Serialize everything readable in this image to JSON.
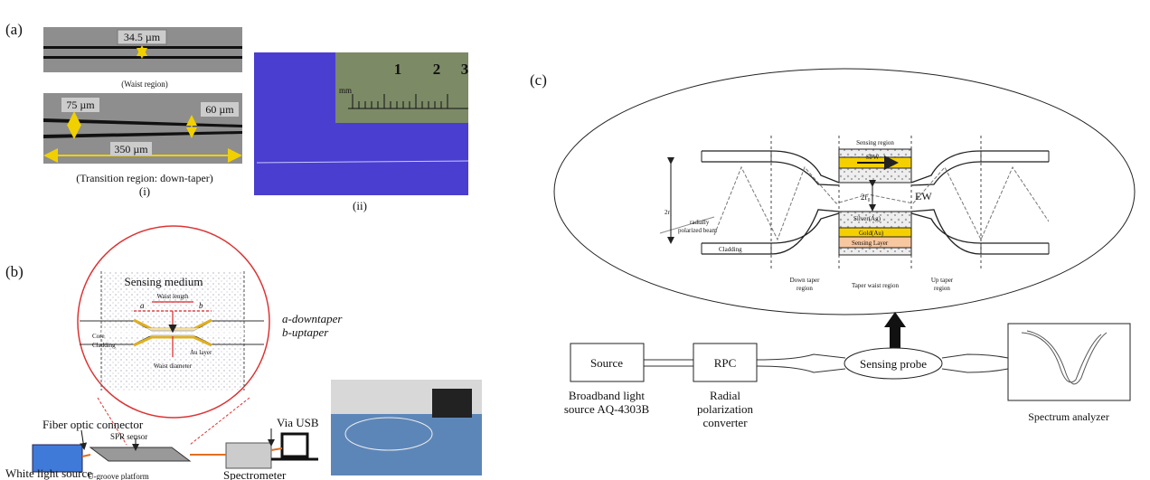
{
  "panel_a": {
    "label": "(a)",
    "waist_width": "34.5 µm",
    "waist_caption": "(Waist region)",
    "taper_width_start": "75 µm",
    "taper_width_end": "60 µm",
    "taper_length": "350 µm",
    "transition_caption": "(Transition region: down-taper)",
    "sub_i": "(i)",
    "sub_ii": "(ii)",
    "ruler": {
      "unit": "mm",
      "marks": [
        "1",
        "2",
        "3"
      ]
    }
  },
  "panel_b": {
    "label": "(b)",
    "sensing_medium": "Sensing medium",
    "waist_length": "Waist length",
    "a": "a",
    "b": "b",
    "core": "Core",
    "cladding": "Cladding",
    "au_layer": "Au layer",
    "waist_diameter": "Waist diameter",
    "legend_a": "a-downtaper",
    "legend_b": "b-uptaper",
    "fiber_connector": "Fiber optic connector",
    "spr_sensor": "SPR sensor",
    "via_usb": "Via USB",
    "white_light": "White light source",
    "u_groove": "U-groove platform",
    "spectrometer": "Spectrometer"
  },
  "panel_c": {
    "label": "(c)",
    "sensing_region": "Sensing region",
    "spw": "SPW",
    "ew": "EW",
    "r0": "2r₀",
    "r1": "2r₁",
    "beam_1": "radially",
    "beam_2": "polarized beam",
    "cladding": "Cladding",
    "silver": "Silver(Ag)",
    "gold": "Gold(Au)",
    "sensing_layer": "Sensing Layer",
    "down_taper_1": "Down taper",
    "down_taper_2": "region",
    "waist_region": "Taper waist region",
    "up_taper_1": "Up taper",
    "up_taper_2": "region",
    "source": "Source",
    "rpc": "RPC",
    "probe": "Sensing probe",
    "source_desc_1": "Broadband light",
    "source_desc_2": "source AQ-4303B",
    "rpc_desc_1": "Radial",
    "rpc_desc_2": "polarization",
    "rpc_desc_3": "converter",
    "analyzer": "Spectrum analyzer"
  }
}
